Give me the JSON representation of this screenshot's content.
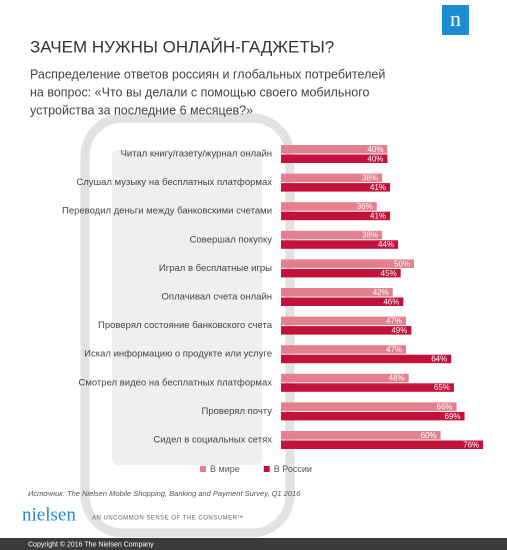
{
  "chart_data": {
    "type": "hbar",
    "title": "ЗАЧЕМ НУЖНЫ ОНЛАЙН-ГАДЖЕТЫ?",
    "subtitle_lines": [
      "Распределение ответов россиян и глобальных потребителей",
      "на вопрос: «Что вы делали с помощью своего мобильного",
      "устройства за последние 6 месяцев?»"
    ],
    "categories": [
      "Читал книгу/газету/журнал онлайн",
      "Слушал музыку на бесплатных платформах",
      "Переводил деньги между банковскими счетами",
      "Совершал покупку",
      "Играл в бесплатные игры",
      "Оплачивал счета онлайн",
      "Проверял состояние банковского счета",
      "Искал информацию о продукте или услуге",
      "Смотрел видео на бесплатных платформах",
      "Проверял почту",
      "Сидел в социальных сетях"
    ],
    "series": [
      {
        "name": "В мире",
        "color": "#e47f8e",
        "values": [
          40,
          38,
          36,
          38,
          50,
          42,
          47,
          47,
          48,
          66,
          60
        ],
        "value_labels": [
          "40%",
          "38%",
          "36%",
          "38%",
          "50%",
          "42%",
          "47%",
          "47%",
          "48%",
          "66%",
          "60%"
        ]
      },
      {
        "name": "В России",
        "color": "#c2123a",
        "values": [
          40,
          41,
          41,
          44,
          45,
          46,
          49,
          64,
          65,
          69,
          76
        ],
        "value_labels": [
          "40%",
          "41%",
          "41%",
          "44%",
          "45%",
          "46%",
          "49%",
          "64%",
          "65%",
          "69%",
          "76%"
        ]
      }
    ],
    "legend": "bottom"
  },
  "source": "Источник: The Nielsen Mobile Shopping, Banking and Payment Survey, Q1 2016",
  "logo": "nielsen",
  "logo_mark": "n",
  "tagline": "AN UNCOMMON SENSE OF THE CONSUMER™",
  "copyright": "Copyright © 2016 The Nielsen Company"
}
